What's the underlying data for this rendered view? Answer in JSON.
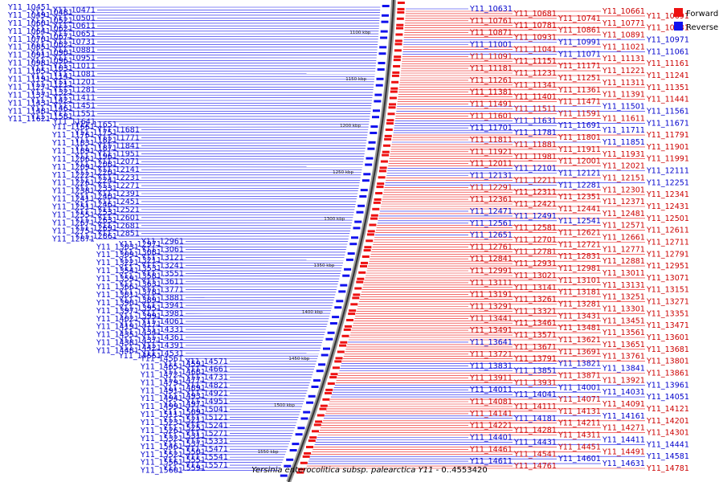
{
  "caption": {
    "organism": "Yersinia enterocolitica subsp. palearctica Y11",
    "suffix": " - 0..4553420"
  },
  "legend": [
    {
      "label": "Forward",
      "color": "#ee1111"
    },
    {
      "label": "Reverse",
      "color": "#1111ee"
    }
  ],
  "ruler_labels": [
    "1100 kbp",
    "1150 kbp",
    "1200 kbp",
    "1250 kbp",
    "1300 kbp",
    "1350 kbp",
    "1400 kbp",
    "1450 kbp",
    "1500 kbp",
    "1550 kbp"
  ],
  "left_genes": [
    "Y11_10451",
    "Y11_10471",
    "Y11_10481",
    "Y11_10491",
    "Y11_10501",
    "Y11_10521",
    "Y11_10601",
    "Y11_10611",
    "Y11_10621",
    "Y11_10641",
    "Y11_10651",
    "Y11_10671",
    "Y11_10701",
    "Y11_10731",
    "Y11_10821",
    "Y11_10851",
    "Y11_10881",
    "Y11_10901",
    "Y11_10911",
    "Y11_10951",
    "Y11_10961",
    "Y11_10981",
    "Y11_11011",
    "Y11_11031",
    "Y11_11051",
    "Y11_11081",
    "Y11_11141",
    "Y11_11191",
    "Y11_11201",
    "Y11_11211",
    "Y11_11271",
    "Y11_11281",
    "Y11_11321",
    "Y11_11371",
    "Y11_11411",
    "Y11_11421",
    "Y11_11431",
    "Y11_11451",
    "Y11_11461",
    "Y11_11481",
    "Y11_11551",
    "Y11_11581",
    "Y11_11621",
    "Y11_11641",
    "Y11_11651",
    "Y11_11661",
    "Y11_11681",
    "Y11_11751",
    "Y11_11761",
    "Y11_11771",
    "Y11_11821",
    "Y11_11831",
    "Y11_11841",
    "Y11_11871",
    "Y11_11891",
    "Y11_11951",
    "Y11_11961",
    "Y11_12061",
    "Y11_12071",
    "Y11_12081",
    "Y11_12091",
    "Y11_12141",
    "Y11_12201",
    "Y11_12221",
    "Y11_12231",
    "Y11_12241",
    "Y11_12261",
    "Y11_12271",
    "Y11_12331",
    "Y11_12381",
    "Y11_12391",
    "Y11_12401",
    "Y11_12411",
    "Y11_12451",
    "Y11_12461",
    "Y11_12511",
    "Y11_12521",
    "Y11_12531",
    "Y11_12551",
    "Y11_12601",
    "Y11_12631",
    "Y11_12671",
    "Y11_12681",
    "Y11_12691",
    "Y11_12751",
    "Y11_12851",
    "Y11_12861",
    "Y11_12871",
    "Y11_12961",
    "Y11_12971",
    "Y11_13031",
    "Y11_13061",
    "Y11_13081",
    "Y11_13091",
    "Y11_13121",
    "Y11_13211",
    "Y11_13221",
    "Y11_13241",
    "Y11_13531",
    "Y11_13541",
    "Y11_13551",
    "Y11_13581",
    "Y11_13591",
    "Y11_13611",
    "Y11_13631",
    "Y11_13661",
    "Y11_13771",
    "Y11_13781",
    "Y11_13811",
    "Y11_13881",
    "Y11_13891",
    "Y11_13901",
    "Y11_13941",
    "Y11_13951",
    "Y11_13971",
    "Y11_13981",
    "Y11_13991",
    "Y11_14021",
    "Y11_14061",
    "Y11_14171",
    "Y11_14191",
    "Y11_14331",
    "Y11_14341",
    "Y11_14351",
    "Y11_14361",
    "Y11_14371",
    "Y11_14381",
    "Y11_14391",
    "Y11_14421",
    "Y11_14481",
    "Y11_14531",
    "Y11_14551",
    "Y11_14561",
    "Y11_14571",
    "Y11_14591",
    "Y11_14651",
    "Y11_14661",
    "Y11_14681",
    "Y11_14721",
    "Y11_14731",
    "Y11_14771",
    "Y11_14791",
    "Y11_14821",
    "Y11_14891",
    "Y11_14911",
    "Y11_14921",
    "Y11_14931",
    "Y11_14941",
    "Y11_14951",
    "Y11_14971",
    "Y11_14991",
    "Y11_15041",
    "Y11_15091",
    "Y11_15111",
    "Y11_15121",
    "Y11_15211",
    "Y11_15231",
    "Y11_15241",
    "Y11_15251",
    "Y11_15261",
    "Y11_15271",
    "Y11_15311",
    "Y11_15321",
    "Y11_15331",
    "Y11_15371",
    "Y11_15461",
    "Y11_15471",
    "Y11_15501",
    "Y11_15521",
    "Y11_15541",
    "Y11_15551",
    "Y11_15561",
    "Y11_15571",
    "Y11_15591",
    "Y11_15601"
  ],
  "right_genes": [
    {
      "id": "Y11_10631",
      "strand": "rev"
    },
    {
      "id": "Y11_10661",
      "strand": "fwd"
    },
    {
      "id": "Y11_10681",
      "strand": "fwd"
    },
    {
      "id": "Y11_10691",
      "strand": "fwd"
    },
    {
      "id": "Y11_10741",
      "strand": "fwd"
    },
    {
      "id": "Y11_10761",
      "strand": "fwd"
    },
    {
      "id": "Y11_10771",
      "strand": "fwd"
    },
    {
      "id": "Y11_10781",
      "strand": "fwd"
    },
    {
      "id": "Y11_10831",
      "strand": "fwd"
    },
    {
      "id": "Y11_10861",
      "strand": "fwd"
    },
    {
      "id": "Y11_10871",
      "strand": "fwd"
    },
    {
      "id": "Y11_10891",
      "strand": "fwd"
    },
    {
      "id": "Y11_10931",
      "strand": "fwd"
    },
    {
      "id": "Y11_10971",
      "strand": "rev"
    },
    {
      "id": "Y11_10991",
      "strand": "rev"
    },
    {
      "id": "Y11_11001",
      "strand": "rev"
    },
    {
      "id": "Y11_11021",
      "strand": "fwd"
    },
    {
      "id": "Y11_11041",
      "strand": "fwd"
    },
    {
      "id": "Y11_11061",
      "strand": "rev"
    },
    {
      "id": "Y11_11071",
      "strand": "rev"
    },
    {
      "id": "Y11_11091",
      "strand": "fwd"
    },
    {
      "id": "Y11_11131",
      "strand": "fwd"
    },
    {
      "id": "Y11_11151",
      "strand": "fwd"
    },
    {
      "id": "Y11_11161",
      "strand": "fwd"
    },
    {
      "id": "Y11_11171",
      "strand": "fwd"
    },
    {
      "id": "Y11_11181",
      "strand": "fwd"
    },
    {
      "id": "Y11_11221",
      "strand": "fwd"
    },
    {
      "id": "Y11_11231",
      "strand": "fwd"
    },
    {
      "id": "Y11_11241",
      "strand": "fwd"
    },
    {
      "id": "Y11_11251",
      "strand": "fwd"
    },
    {
      "id": "Y11_11261",
      "strand": "fwd"
    },
    {
      "id": "Y11_11311",
      "strand": "fwd"
    },
    {
      "id": "Y11_11341",
      "strand": "fwd"
    },
    {
      "id": "Y11_11351",
      "strand": "fwd"
    },
    {
      "id": "Y11_11361",
      "strand": "fwd"
    },
    {
      "id": "Y11_11381",
      "strand": "fwd"
    },
    {
      "id": "Y11_11391",
      "strand": "fwd"
    },
    {
      "id": "Y11_11401",
      "strand": "fwd"
    },
    {
      "id": "Y11_11441",
      "strand": "fwd"
    },
    {
      "id": "Y11_11471",
      "strand": "fwd"
    },
    {
      "id": "Y11_11491",
      "strand": "fwd"
    },
    {
      "id": "Y11_11501",
      "strand": "rev"
    },
    {
      "id": "Y11_11511",
      "strand": "fwd"
    },
    {
      "id": "Y11_11561",
      "strand": "rev"
    },
    {
      "id": "Y11_11591",
      "strand": "fwd"
    },
    {
      "id": "Y11_11601",
      "strand": "fwd"
    },
    {
      "id": "Y11_11611",
      "strand": "fwd"
    },
    {
      "id": "Y11_11631",
      "strand": "rev"
    },
    {
      "id": "Y11_11671",
      "strand": "rev"
    },
    {
      "id": "Y11_11691",
      "strand": "rev"
    },
    {
      "id": "Y11_11701",
      "strand": "rev"
    },
    {
      "id": "Y11_11711",
      "strand": "rev"
    },
    {
      "id": "Y11_11781",
      "strand": "rev"
    },
    {
      "id": "Y11_11791",
      "strand": "fwd"
    },
    {
      "id": "Y11_11801",
      "strand": "fwd"
    },
    {
      "id": "Y11_11811",
      "strand": "fwd"
    },
    {
      "id": "Y11_11851",
      "strand": "rev"
    },
    {
      "id": "Y11_11881",
      "strand": "fwd"
    },
    {
      "id": "Y11_11901",
      "strand": "fwd"
    },
    {
      "id": "Y11_11911",
      "strand": "fwd"
    },
    {
      "id": "Y11_11921",
      "strand": "fwd"
    },
    {
      "id": "Y11_11931",
      "strand": "fwd"
    },
    {
      "id": "Y11_11981",
      "strand": "fwd"
    },
    {
      "id": "Y11_11991",
      "strand": "fwd"
    },
    {
      "id": "Y11_12001",
      "strand": "fwd"
    },
    {
      "id": "Y11_12011",
      "strand": "fwd"
    },
    {
      "id": "Y11_12021",
      "strand": "fwd"
    },
    {
      "id": "Y11_12101",
      "strand": "rev"
    },
    {
      "id": "Y11_12111",
      "strand": "rev"
    },
    {
      "id": "Y11_12121",
      "strand": "rev"
    },
    {
      "id": "Y11_12131",
      "strand": "rev"
    },
    {
      "id": "Y11_12151",
      "strand": "fwd"
    },
    {
      "id": "Y11_12211",
      "strand": "fwd"
    },
    {
      "id": "Y11_12251",
      "strand": "rev"
    },
    {
      "id": "Y11_12281",
      "strand": "rev"
    },
    {
      "id": "Y11_12291",
      "strand": "fwd"
    },
    {
      "id": "Y11_12301",
      "strand": "fwd"
    },
    {
      "id": "Y11_12311",
      "strand": "fwd"
    },
    {
      "id": "Y11_12341",
      "strand": "fwd"
    },
    {
      "id": "Y11_12351",
      "strand": "fwd"
    },
    {
      "id": "Y11_12361",
      "strand": "fwd"
    },
    {
      "id": "Y11_12371",
      "strand": "fwd"
    },
    {
      "id": "Y11_12421",
      "strand": "fwd"
    },
    {
      "id": "Y11_12431",
      "strand": "fwd"
    },
    {
      "id": "Y11_12441",
      "strand": "fwd"
    },
    {
      "id": "Y11_12471",
      "strand": "rev"
    },
    {
      "id": "Y11_12481",
      "strand": "fwd"
    },
    {
      "id": "Y11_12491",
      "strand": "rev"
    },
    {
      "id": "Y11_12501",
      "strand": "fwd"
    },
    {
      "id": "Y11_12541",
      "strand": "rev"
    },
    {
      "id": "Y11_12561",
      "strand": "rev"
    },
    {
      "id": "Y11_12571",
      "strand": "fwd"
    },
    {
      "id": "Y11_12581",
      "strand": "fwd"
    },
    {
      "id": "Y11_12611",
      "strand": "fwd"
    },
    {
      "id": "Y11_12621",
      "strand": "fwd"
    },
    {
      "id": "Y11_12651",
      "strand": "rev"
    },
    {
      "id": "Y11_12661",
      "strand": "fwd"
    },
    {
      "id": "Y11_12701",
      "strand": "fwd"
    },
    {
      "id": "Y11_12711",
      "strand": "fwd"
    },
    {
      "id": "Y11_12721",
      "strand": "fwd"
    },
    {
      "id": "Y11_12761",
      "strand": "fwd"
    },
    {
      "id": "Y11_12771",
      "strand": "fwd"
    },
    {
      "id": "Y11_12781",
      "strand": "fwd"
    },
    {
      "id": "Y11_12791",
      "strand": "fwd"
    },
    {
      "id": "Y11_12831",
      "strand": "fwd"
    },
    {
      "id": "Y11_12841",
      "strand": "fwd"
    },
    {
      "id": "Y11_12881",
      "strand": "fwd"
    },
    {
      "id": "Y11_12931",
      "strand": "fwd"
    },
    {
      "id": "Y11_12951",
      "strand": "fwd"
    },
    {
      "id": "Y11_12981",
      "strand": "fwd"
    },
    {
      "id": "Y11_12991",
      "strand": "fwd"
    },
    {
      "id": "Y11_13011",
      "strand": "fwd"
    },
    {
      "id": "Y11_13021",
      "strand": "fwd"
    },
    {
      "id": "Y11_13071",
      "strand": "fwd"
    },
    {
      "id": "Y11_13101",
      "strand": "fwd"
    },
    {
      "id": "Y11_13111",
      "strand": "fwd"
    },
    {
      "id": "Y11_13131",
      "strand": "fwd"
    },
    {
      "id": "Y11_13141",
      "strand": "fwd"
    },
    {
      "id": "Y11_13151",
      "strand": "fwd"
    },
    {
      "id": "Y11_13181",
      "strand": "fwd"
    },
    {
      "id": "Y11_13191",
      "strand": "fwd"
    },
    {
      "id": "Y11_13251",
      "strand": "fwd"
    },
    {
      "id": "Y11_13261",
      "strand": "fwd"
    },
    {
      "id": "Y11_13271",
      "strand": "fwd"
    },
    {
      "id": "Y11_13281",
      "strand": "fwd"
    },
    {
      "id": "Y11_13291",
      "strand": "fwd"
    },
    {
      "id": "Y11_13301",
      "strand": "fwd"
    },
    {
      "id": "Y11_13321",
      "strand": "fwd"
    },
    {
      "id": "Y11_13351",
      "strand": "fwd"
    },
    {
      "id": "Y11_13431",
      "strand": "fwd"
    },
    {
      "id": "Y11_13441",
      "strand": "fwd"
    },
    {
      "id": "Y11_13451",
      "strand": "fwd"
    },
    {
      "id": "Y11_13461",
      "strand": "fwd"
    },
    {
      "id": "Y11_13471",
      "strand": "fwd"
    },
    {
      "id": "Y11_13481",
      "strand": "fwd"
    },
    {
      "id": "Y11_13491",
      "strand": "fwd"
    },
    {
      "id": "Y11_13561",
      "strand": "fwd"
    },
    {
      "id": "Y11_13571",
      "strand": "fwd"
    },
    {
      "id": "Y11_13601",
      "strand": "fwd"
    },
    {
      "id": "Y11_13621",
      "strand": "fwd"
    },
    {
      "id": "Y11_13641",
      "strand": "rev"
    },
    {
      "id": "Y11_13651",
      "strand": "fwd"
    },
    {
      "id": "Y11_13671",
      "strand": "fwd"
    },
    {
      "id": "Y11_13681",
      "strand": "fwd"
    },
    {
      "id": "Y11_13691",
      "strand": "fwd"
    },
    {
      "id": "Y11_13721",
      "strand": "fwd"
    },
    {
      "id": "Y11_13761",
      "strand": "fwd"
    },
    {
      "id": "Y11_13791",
      "strand": "fwd"
    },
    {
      "id": "Y11_13801",
      "strand": "fwd"
    },
    {
      "id": "Y11_13821",
      "strand": "rev"
    },
    {
      "id": "Y11_13831",
      "strand": "rev"
    },
    {
      "id": "Y11_13841",
      "strand": "rev"
    },
    {
      "id": "Y11_13851",
      "strand": "rev"
    },
    {
      "id": "Y11_13861",
      "strand": "fwd"
    },
    {
      "id": "Y11_13871",
      "strand": "fwd"
    },
    {
      "id": "Y11_13911",
      "strand": "fwd"
    },
    {
      "id": "Y11_13921",
      "strand": "fwd"
    },
    {
      "id": "Y11_13931",
      "strand": "fwd"
    },
    {
      "id": "Y11_13961",
      "strand": "rev"
    },
    {
      "id": "Y11_14001",
      "strand": "rev"
    },
    {
      "id": "Y11_14011",
      "strand": "rev"
    },
    {
      "id": "Y11_14031",
      "strand": "rev"
    },
    {
      "id": "Y11_14041",
      "strand": "rev"
    },
    {
      "id": "Y11_14051",
      "strand": "rev"
    },
    {
      "id": "Y11_14071",
      "strand": "fwd"
    },
    {
      "id": "Y11_14081",
      "strand": "fwd"
    },
    {
      "id": "Y11_14091",
      "strand": "fwd"
    },
    {
      "id": "Y11_14111",
      "strand": "fwd"
    },
    {
      "id": "Y11_14121",
      "strand": "fwd"
    },
    {
      "id": "Y11_14131",
      "strand": "fwd"
    },
    {
      "id": "Y11_14141",
      "strand": "fwd"
    },
    {
      "id": "Y11_14161",
      "strand": "rev"
    },
    {
      "id": "Y11_14181",
      "strand": "rev"
    },
    {
      "id": "Y11_14201",
      "strand": "fwd"
    },
    {
      "id": "Y11_14211",
      "strand": "fwd"
    },
    {
      "id": "Y11_14221",
      "strand": "fwd"
    },
    {
      "id": "Y11_14271",
      "strand": "fwd"
    },
    {
      "id": "Y11_14281",
      "strand": "fwd"
    },
    {
      "id": "Y11_14301",
      "strand": "fwd"
    },
    {
      "id": "Y11_14311",
      "strand": "fwd"
    },
    {
      "id": "Y11_14401",
      "strand": "rev"
    },
    {
      "id": "Y11_14411",
      "strand": "rev"
    },
    {
      "id": "Y11_14431",
      "strand": "rev"
    },
    {
      "id": "Y11_14441",
      "strand": "rev"
    },
    {
      "id": "Y11_14451",
      "strand": "fwd"
    },
    {
      "id": "Y11_14461",
      "strand": "fwd"
    },
    {
      "id": "Y11_14491",
      "strand": "fwd"
    },
    {
      "id": "Y11_14541",
      "strand": "fwd"
    },
    {
      "id": "Y11_14581",
      "strand": "rev"
    },
    {
      "id": "Y11_14601",
      "strand": "rev"
    },
    {
      "id": "Y11_14611",
      "strand": "rev"
    },
    {
      "id": "Y11_14631",
      "strand": "rev"
    },
    {
      "id": "Y11_14761",
      "strand": "fwd"
    },
    {
      "id": "Y11_14781",
      "strand": "fwd"
    }
  ]
}
